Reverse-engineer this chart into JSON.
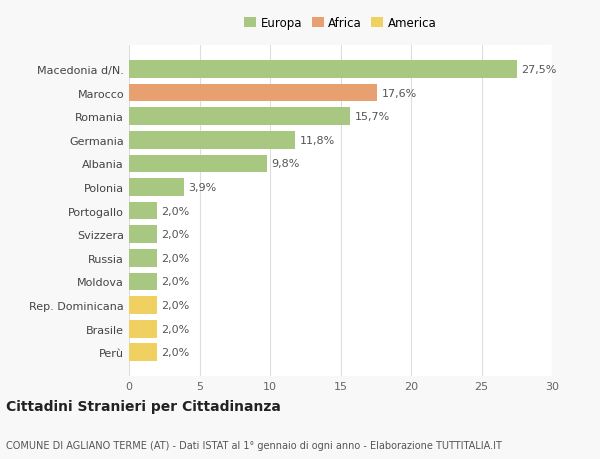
{
  "categories": [
    "Macedonia d/N.",
    "Marocco",
    "Romania",
    "Germania",
    "Albania",
    "Polonia",
    "Portogallo",
    "Svizzera",
    "Russia",
    "Moldova",
    "Rep. Dominicana",
    "Brasile",
    "Perù"
  ],
  "values": [
    27.5,
    17.6,
    15.7,
    11.8,
    9.8,
    3.9,
    2.0,
    2.0,
    2.0,
    2.0,
    2.0,
    2.0,
    2.0
  ],
  "labels": [
    "27,5%",
    "17,6%",
    "15,7%",
    "11,8%",
    "9,8%",
    "3,9%",
    "2,0%",
    "2,0%",
    "2,0%",
    "2,0%",
    "2,0%",
    "2,0%",
    "2,0%"
  ],
  "colors": [
    "#a8c882",
    "#e8a070",
    "#a8c882",
    "#a8c882",
    "#a8c882",
    "#a8c882",
    "#a8c882",
    "#a8c882",
    "#a8c882",
    "#a8c882",
    "#f0d060",
    "#f0d060",
    "#f0d060"
  ],
  "legend_labels": [
    "Europa",
    "Africa",
    "America"
  ],
  "legend_colors": [
    "#a8c882",
    "#e8a070",
    "#f0d060"
  ],
  "title": "Cittadini Stranieri per Cittadinanza",
  "subtitle": "COMUNE DI AGLIANO TERME (AT) - Dati ISTAT al 1° gennaio di ogni anno - Elaborazione TUTTITALIA.IT",
  "xlim": [
    0,
    30
  ],
  "xticks": [
    0,
    5,
    10,
    15,
    20,
    25,
    30
  ],
  "background_color": "#f8f8f8",
  "bar_background": "#ffffff",
  "grid_color": "#dddddd",
  "label_fontsize": 8,
  "tick_fontsize": 8,
  "title_fontsize": 10,
  "subtitle_fontsize": 7
}
